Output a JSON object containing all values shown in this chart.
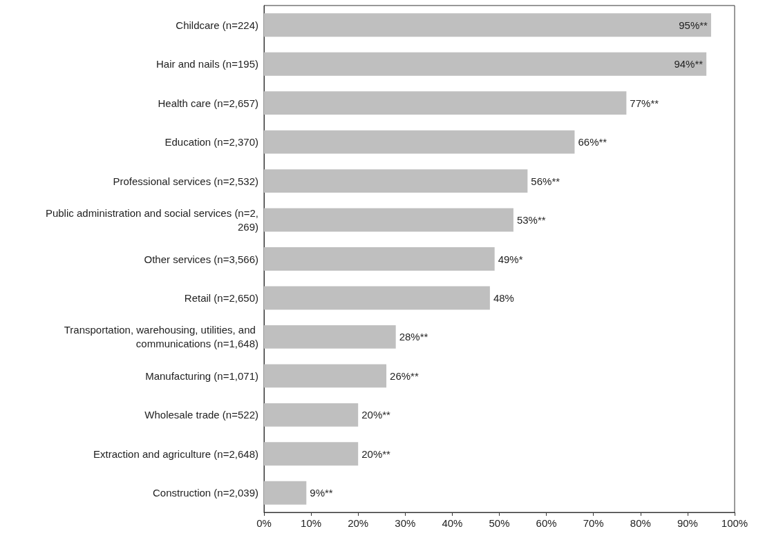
{
  "chart_data": {
    "type": "bar",
    "orientation": "horizontal",
    "categories": [
      "Childcare (n=224)",
      "Hair and nails (n=195)",
      "Health care (n=2,657)",
      "Education (n=2,370)",
      "Professional services (n=2,532)",
      "Public administration and social services (n=2,269)",
      "Other services (n=3,566)",
      "Retail (n=2,650)",
      "Transportation, warehousing, utilities, and communications (n=1,648)",
      "Manufacturing (n=1,071)",
      "Wholesale trade (n=522)",
      "Extraction and agriculture (n=2,648)",
      "Construction (n=2,039)"
    ],
    "values": [
      95,
      94,
      77,
      66,
      56,
      53,
      49,
      48,
      28,
      26,
      20,
      20,
      9
    ],
    "value_labels": [
      "95%**",
      "94%**",
      "77%**",
      "66%**",
      "56%**",
      "53%**",
      "49%*",
      "48%",
      "28%**",
      "26%**",
      "20%**",
      "20%**",
      "9%**"
    ],
    "color": "#bfbfbf",
    "xlim": [
      0,
      100
    ],
    "xticks": [
      {
        "value": 0,
        "label": "0%"
      },
      {
        "value": 10,
        "label": "10%"
      },
      {
        "value": 20,
        "label": "20%"
      },
      {
        "value": 30,
        "label": "30%"
      },
      {
        "value": 40,
        "label": "40%"
      },
      {
        "value": 50,
        "label": "50%"
      },
      {
        "value": 60,
        "label": "60%"
      },
      {
        "value": 70,
        "label": "70%"
      },
      {
        "value": 80,
        "label": "80%"
      },
      {
        "value": 90,
        "label": "90%"
      },
      {
        "value": 100,
        "label": "100%"
      }
    ],
    "grid": false
  }
}
